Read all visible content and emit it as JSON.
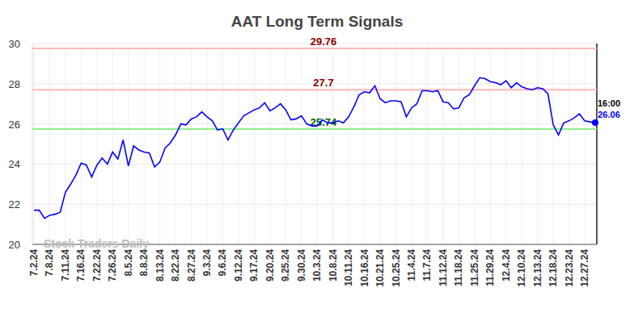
{
  "chart_data": {
    "type": "line",
    "title": "AAT Long Term Signals",
    "watermark": "Stock Traders Daily",
    "categories": [
      "7.2.24",
      null,
      null,
      "7.8.24",
      null,
      null,
      "7.11.24",
      null,
      null,
      "7.16.24",
      null,
      null,
      "7.22.24",
      null,
      null,
      "7.26.24",
      null,
      null,
      "8.5.24",
      null,
      null,
      "8.8.24",
      null,
      null,
      "8.13.24",
      null,
      null,
      "8.22.24",
      null,
      null,
      "8.27.24",
      null,
      null,
      "9.3.24",
      null,
      null,
      "9.6.24",
      null,
      null,
      "9.12.24",
      null,
      null,
      "9.17.24",
      null,
      null,
      "9.20.24",
      null,
      null,
      "9.25.24",
      null,
      null,
      "9.30.24",
      null,
      null,
      "10.3.24",
      null,
      null,
      "10.8.24",
      null,
      null,
      "10.11.24",
      null,
      null,
      "10.16.24",
      null,
      null,
      "10.21.24",
      null,
      null,
      "10.25.24",
      null,
      null,
      "11.4.24",
      null,
      null,
      "11.7.24",
      null,
      null,
      "11.12.24",
      null,
      null,
      "11.18.24",
      null,
      null,
      "11.25.24",
      null,
      null,
      "11.29.24",
      null,
      null,
      "12.4.24",
      null,
      null,
      "12.10.24",
      null,
      null,
      "12.13.24",
      null,
      null,
      "12.18.24",
      null,
      null,
      "12.23.24",
      null,
      null,
      "12.27.24",
      null,
      null
    ],
    "values": [
      21.7,
      21.7,
      21.3,
      21.45,
      21.5,
      21.6,
      22.6,
      23.0,
      23.45,
      24.05,
      23.95,
      23.35,
      23.95,
      24.3,
      24.0,
      24.6,
      24.25,
      25.2,
      23.9,
      24.9,
      24.7,
      24.6,
      24.55,
      23.85,
      24.1,
      24.8,
      25.05,
      25.45,
      26.0,
      25.95,
      26.25,
      26.35,
      26.6,
      26.35,
      26.15,
      25.7,
      25.75,
      25.2,
      25.7,
      26.05,
      26.4,
      26.55,
      26.7,
      26.8,
      27.05,
      26.65,
      26.8,
      27.0,
      26.7,
      26.2,
      26.25,
      26.4,
      26.0,
      25.9,
      25.9,
      26.2,
      26.05,
      26.05,
      26.15,
      26.05,
      26.35,
      26.85,
      27.45,
      27.6,
      27.55,
      27.9,
      27.25,
      27.05,
      27.15,
      27.15,
      27.1,
      26.35,
      26.8,
      27.0,
      27.65,
      27.65,
      27.6,
      27.65,
      27.1,
      27.05,
      26.75,
      26.8,
      27.3,
      27.45,
      27.9,
      28.3,
      28.25,
      28.1,
      28.05,
      27.95,
      28.15,
      27.8,
      28.05,
      27.85,
      27.75,
      27.7,
      27.8,
      27.75,
      27.5,
      25.95,
      25.45,
      26.05,
      26.15,
      26.3,
      26.5,
      26.15,
      26.1,
      26.06
    ],
    "color": "#0000ff",
    "ylim": [
      20,
      30
    ],
    "yticks": [
      20,
      22,
      24,
      26,
      28,
      30
    ],
    "grid": true,
    "reference_lines": [
      {
        "value": 29.76,
        "color": "#ffb6b6",
        "label_color": "#8b0000"
      },
      {
        "value": 27.7,
        "color": "#ffb6b6",
        "label_color": "#8b0000"
      },
      {
        "value": 25.74,
        "color": "#90ee90",
        "label_color": "#006400"
      }
    ],
    "last_label": "16:00"
  }
}
